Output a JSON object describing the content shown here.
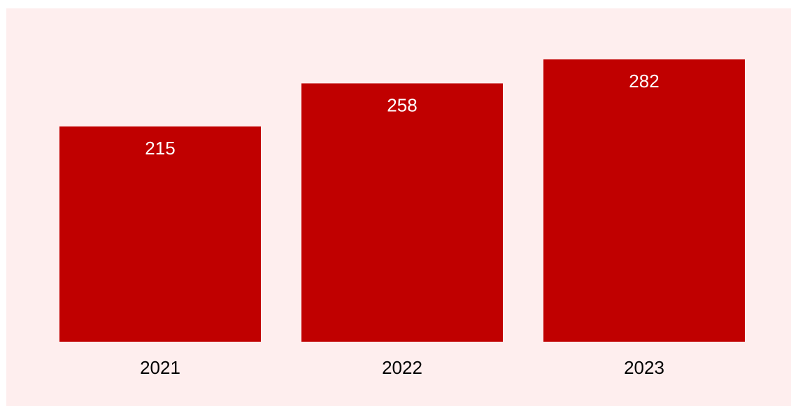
{
  "chart_data": {
    "type": "bar",
    "categories": [
      "2021",
      "2022",
      "2023"
    ],
    "values": [
      215,
      258,
      282
    ],
    "data_labels": [
      "215",
      "258",
      "282"
    ],
    "title": "",
    "xlabel": "",
    "ylabel": "",
    "ylim": [
      0,
      282
    ],
    "grid": false,
    "legend": "none"
  },
  "colors": {
    "panel_background": "#feeeee",
    "bar": "#c00000",
    "bar_label": "#ffffff",
    "tick_label": "#000000"
  }
}
